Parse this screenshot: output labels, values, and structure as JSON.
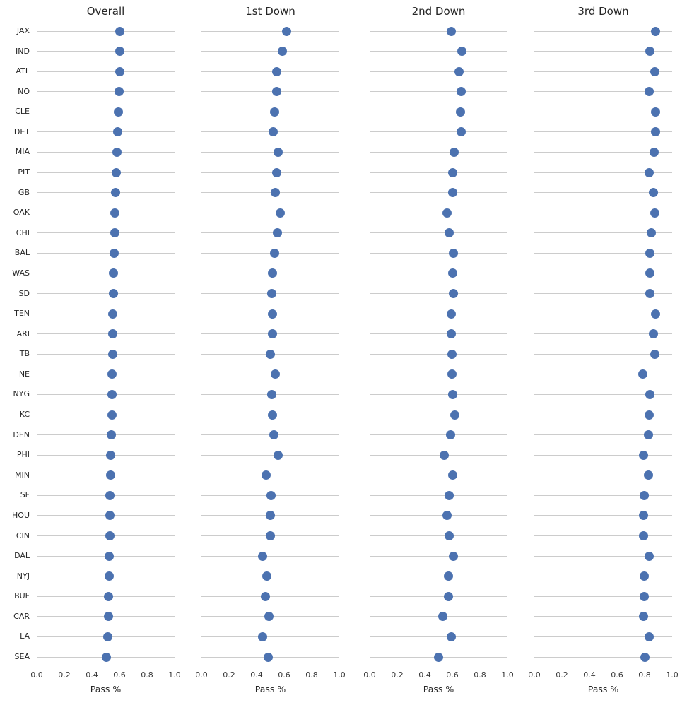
{
  "chart_data": {
    "type": "scatter",
    "subtype": "horizontal-dot-plot",
    "title": "",
    "xlabel": "Pass %",
    "xlim": [
      0.0,
      1.0
    ],
    "xticks": [
      0.0,
      0.2,
      0.4,
      0.6,
      0.8,
      1.0
    ],
    "grid": "one horizontal line per team row",
    "legend": "none",
    "colors": {
      "dot": "#4C72B0",
      "grid_line": "#CCCCCC",
      "title_text": "#262626",
      "tick_text": "#3A3A3A",
      "label_text": "#262626",
      "background": "#FFFFFF"
    },
    "teams": [
      "JAX",
      "IND",
      "ATL",
      "NO",
      "CLE",
      "DET",
      "MIA",
      "PIT",
      "GB",
      "OAK",
      "CHI",
      "BAL",
      "WAS",
      "SD",
      "TEN",
      "ARI",
      "TB",
      "NE",
      "NYG",
      "KC",
      "DEN",
      "PHI",
      "MIN",
      "SF",
      "HOU",
      "CIN",
      "DAL",
      "NYJ",
      "BUF",
      "CAR",
      "LA",
      "SEA"
    ],
    "panels": [
      {
        "title": "Overall",
        "xlabel": "Pass %",
        "values": [
          0.601,
          0.601,
          0.6,
          0.596,
          0.591,
          0.585,
          0.581,
          0.578,
          0.573,
          0.568,
          0.566,
          0.561,
          0.558,
          0.556,
          0.553,
          0.551,
          0.549,
          0.548,
          0.546,
          0.544,
          0.542,
          0.538,
          0.534,
          0.532,
          0.53,
          0.529,
          0.527,
          0.524,
          0.521,
          0.518,
          0.515,
          0.507
        ]
      },
      {
        "title": "1st Down",
        "xlabel": "Pass %",
        "values": [
          0.62,
          0.586,
          0.548,
          0.545,
          0.532,
          0.52,
          0.557,
          0.547,
          0.538,
          0.571,
          0.549,
          0.532,
          0.516,
          0.509,
          0.516,
          0.515,
          0.499,
          0.538,
          0.509,
          0.513,
          0.525,
          0.556,
          0.467,
          0.504,
          0.501,
          0.501,
          0.446,
          0.475,
          0.462,
          0.491,
          0.443,
          0.487
        ]
      },
      {
        "title": "2nd Down",
        "xlabel": "Pass %",
        "values": [
          0.593,
          0.668,
          0.651,
          0.665,
          0.657,
          0.662,
          0.612,
          0.604,
          0.602,
          0.561,
          0.577,
          0.606,
          0.6,
          0.606,
          0.592,
          0.593,
          0.599,
          0.599,
          0.6,
          0.619,
          0.588,
          0.541,
          0.602,
          0.578,
          0.563,
          0.578,
          0.609,
          0.571,
          0.571,
          0.532,
          0.593,
          0.502
        ]
      },
      {
        "title": "3rd Down",
        "xlabel": "Pass %",
        "values": [
          0.88,
          0.836,
          0.872,
          0.834,
          0.879,
          0.882,
          0.87,
          0.831,
          0.862,
          0.875,
          0.848,
          0.841,
          0.838,
          0.836,
          0.882,
          0.862,
          0.872,
          0.788,
          0.839,
          0.831,
          0.826,
          0.791,
          0.826,
          0.798,
          0.793,
          0.793,
          0.834,
          0.797,
          0.795,
          0.79,
          0.834,
          0.805
        ]
      }
    ]
  }
}
